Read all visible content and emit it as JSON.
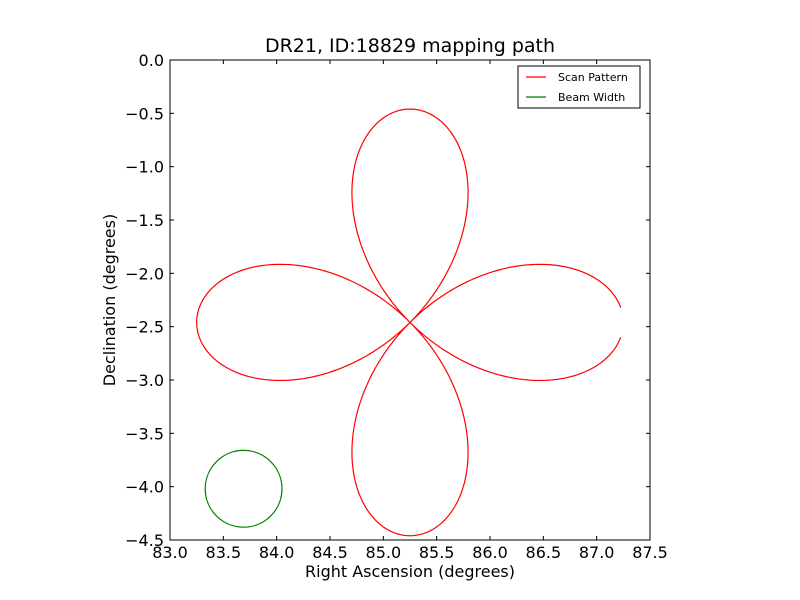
{
  "chart_data": {
    "type": "line",
    "title": "DR21, ID:18829 mapping path",
    "xlabel": "Right Ascension (degrees)",
    "ylabel": "Declination (degrees)",
    "xlim": [
      83.0,
      87.5
    ],
    "ylim": [
      -4.5,
      0.0
    ],
    "xticks": [
      83.0,
      83.5,
      84.0,
      84.5,
      85.0,
      85.5,
      86.0,
      86.5,
      87.0,
      87.5
    ],
    "xtick_labels": [
      "83.0",
      "83.5",
      "84.0",
      "84.5",
      "85.0",
      "85.5",
      "86.0",
      "86.5",
      "87.0",
      "87.5"
    ],
    "yticks": [
      0.0,
      -0.5,
      -1.0,
      -1.5,
      -2.0,
      -2.5,
      -3.0,
      -3.5,
      -4.0,
      -4.5
    ],
    "ytick_labels": [
      "0.0",
      "−0.5",
      "−1.0",
      "−1.5",
      "−2.0",
      "−2.5",
      "−3.0",
      "−3.5",
      "−4.0",
      "−4.5"
    ],
    "grid": false,
    "legend": "top-right",
    "series": [
      {
        "name": "Scan Pattern",
        "color": "#ff0000",
        "shape": "four-petal rose",
        "center": [
          85.25,
          -2.46
        ],
        "petal_radius": 2.0,
        "gap_end": [
          87.24,
          -2.6
        ]
      },
      {
        "name": "Beam Width",
        "color": "#008000",
        "shape": "circle",
        "center": [
          83.69,
          -4.02
        ],
        "radius": 0.36
      }
    ]
  }
}
